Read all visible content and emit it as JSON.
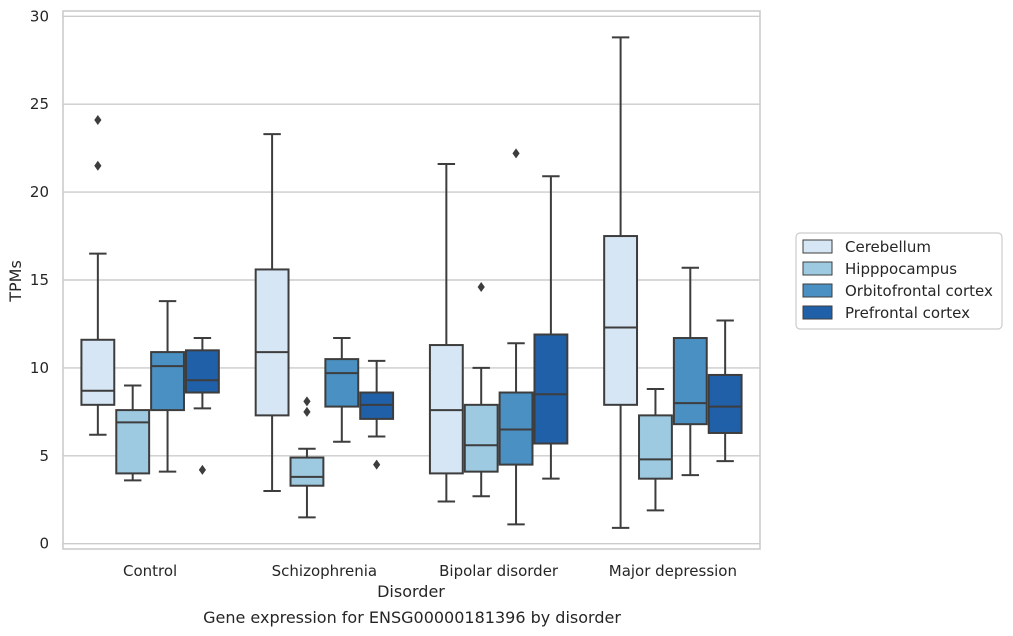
{
  "chart_data": {
    "type": "box",
    "title": "",
    "caption": "Gene expression for ENSG00000181396 by disorder",
    "xlabel": "Disorder",
    "ylabel": "TPMs",
    "ylim": [
      -0.3,
      30.3
    ],
    "yticks": [
      0,
      5,
      10,
      15,
      20,
      25,
      30
    ],
    "grid": "horizontal",
    "legend_position": "right",
    "categories": [
      "Control",
      "Schizophrenia",
      "Bipolar disorder",
      "Major depression"
    ],
    "series": [
      {
        "name": "Cerebellum",
        "color": "#d6e6f4",
        "boxes": [
          {
            "whislo": 6.2,
            "q1": 7.9,
            "med": 8.7,
            "q3": 11.6,
            "whishi": 16.5,
            "fliers": [
              21.5,
              24.1
            ]
          },
          {
            "whislo": 3.0,
            "q1": 7.3,
            "med": 10.9,
            "q3": 15.6,
            "whishi": 23.3,
            "fliers": []
          },
          {
            "whislo": 2.4,
            "q1": 4.0,
            "med": 7.6,
            "q3": 11.3,
            "whishi": 21.6,
            "fliers": []
          },
          {
            "whislo": 0.9,
            "q1": 7.9,
            "med": 12.3,
            "q3": 17.5,
            "whishi": 28.8,
            "fliers": []
          }
        ]
      },
      {
        "name": "Hipppocampus",
        "color": "#9ecae1",
        "boxes": [
          {
            "whislo": 3.6,
            "q1": 4.0,
            "med": 6.9,
            "q3": 7.6,
            "whishi": 9.0,
            "fliers": []
          },
          {
            "whislo": 1.5,
            "q1": 3.3,
            "med": 3.8,
            "q3": 4.9,
            "whishi": 5.4,
            "fliers": [
              7.5,
              8.1
            ]
          },
          {
            "whislo": 2.7,
            "q1": 4.1,
            "med": 5.6,
            "q3": 7.9,
            "whishi": 10.0,
            "fliers": [
              14.6
            ]
          },
          {
            "whislo": 1.9,
            "q1": 3.7,
            "med": 4.8,
            "q3": 7.3,
            "whishi": 8.8,
            "fliers": []
          }
        ]
      },
      {
        "name": "Orbitofrontal cortex",
        "color": "#4a90c2",
        "boxes": [
          {
            "whislo": 4.1,
            "q1": 7.6,
            "med": 10.1,
            "q3": 10.9,
            "whishi": 13.8,
            "fliers": []
          },
          {
            "whislo": 5.8,
            "q1": 7.8,
            "med": 9.7,
            "q3": 10.5,
            "whishi": 11.7,
            "fliers": []
          },
          {
            "whislo": 1.1,
            "q1": 4.5,
            "med": 6.5,
            "q3": 8.6,
            "whishi": 11.4,
            "fliers": [
              22.2
            ]
          },
          {
            "whislo": 3.9,
            "q1": 6.8,
            "med": 8.0,
            "q3": 11.7,
            "whishi": 15.7,
            "fliers": []
          }
        ]
      },
      {
        "name": "Prefrontal cortex",
        "color": "#2060a8",
        "boxes": [
          {
            "whislo": 7.7,
            "q1": 8.6,
            "med": 9.3,
            "q3": 11.0,
            "whishi": 11.7,
            "fliers": [
              4.2
            ]
          },
          {
            "whislo": 6.1,
            "q1": 7.1,
            "med": 7.9,
            "q3": 8.6,
            "whishi": 10.4,
            "fliers": [
              4.5
            ]
          },
          {
            "whislo": 3.7,
            "q1": 5.7,
            "med": 8.5,
            "q3": 11.9,
            "whishi": 20.9,
            "fliers": []
          },
          {
            "whislo": 4.7,
            "q1": 6.3,
            "med": 7.8,
            "q3": 9.6,
            "whishi": 12.7,
            "fliers": []
          }
        ]
      }
    ]
  }
}
